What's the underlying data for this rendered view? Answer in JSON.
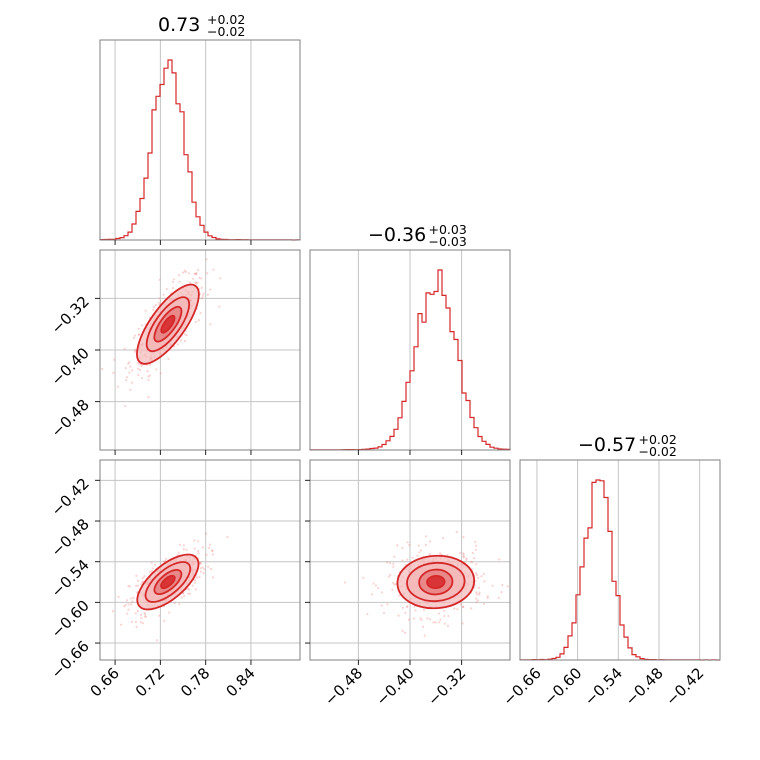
{
  "colors": {
    "accent": "#d62728",
    "fill_light": "#f4b8b8",
    "fill_dark": "#e47878",
    "scatter": "#f08080"
  },
  "chart_data": {
    "type": "corner",
    "parameters": 3,
    "titles": [
      {
        "median": "0.73",
        "upper": "+0.02",
        "lower": "−0.02"
      },
      {
        "median": "−0.36",
        "upper": "+0.03",
        "lower": "−0.03"
      },
      {
        "median": "−0.57",
        "upper": "+0.02",
        "lower": "−0.02"
      }
    ],
    "axes": [
      {
        "range": [
          0.64,
          0.905
        ],
        "ticks": [
          0.66,
          0.72,
          0.78,
          0.84
        ],
        "tick_labels": [
          "0.66",
          "0.72",
          "0.78",
          "0.84"
        ]
      },
      {
        "range": [
          -0.555,
          -0.245
        ],
        "ticks": [
          -0.48,
          -0.4,
          -0.32
        ],
        "tick_labels": [
          "−0.48",
          "−0.40",
          "−0.32"
        ]
      },
      {
        "range": [
          -0.685,
          -0.39
        ],
        "ticks": [
          -0.66,
          -0.6,
          -0.54,
          -0.48,
          -0.42
        ],
        "tick_labels": [
          "−0.66",
          "−0.60",
          "−0.54",
          "−0.48",
          "−0.42"
        ]
      }
    ],
    "marginals": [
      {
        "mean": 0.73,
        "sd": 0.02
      },
      {
        "mean": -0.36,
        "sd": 0.03
      },
      {
        "mean": -0.57,
        "sd": 0.02
      }
    ],
    "joint": [
      {
        "x": 0,
        "y": 1,
        "x_center": 0.73,
        "y_center": -0.36,
        "correlation": 0.75
      },
      {
        "x": 0,
        "y": 2,
        "x_center": 0.73,
        "y_center": -0.57,
        "correlation": 0.65
      },
      {
        "x": 1,
        "y": 2,
        "x_center": -0.36,
        "y_center": -0.57,
        "correlation": 0.05
      }
    ],
    "grid": true
  }
}
